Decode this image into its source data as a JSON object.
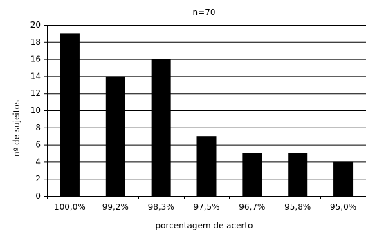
{
  "chart_data": {
    "type": "bar",
    "title": "n=70",
    "xlabel": "porcentagem de acerto",
    "ylabel": "nº de sujeitos",
    "categories": [
      "100,0%",
      "99,2%",
      "98,3%",
      "97,5%",
      "96,7%",
      "95,8%",
      "95,0%"
    ],
    "values": [
      19,
      14,
      16,
      7,
      5,
      5,
      4
    ],
    "ylim": [
      0,
      20
    ],
    "yticks": [
      0,
      2,
      4,
      6,
      8,
      10,
      12,
      14,
      16,
      18,
      20
    ],
    "grid": true,
    "legend": "none",
    "bar_color": "#000000",
    "grid_color": "#000000"
  }
}
